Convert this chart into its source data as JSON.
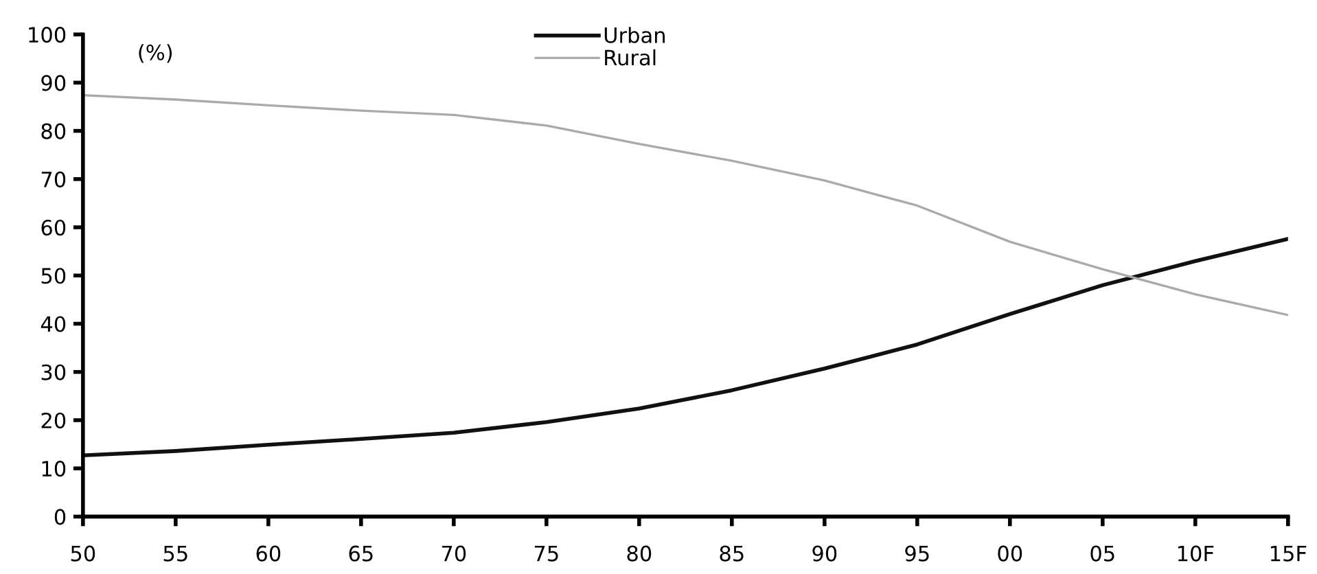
{
  "chart_data": {
    "type": "line",
    "categories": [
      "50",
      "55",
      "60",
      "65",
      "70",
      "75",
      "80",
      "85",
      "90",
      "95",
      "00",
      "05",
      "10F",
      "15F"
    ],
    "series": [
      {
        "name": "Urban",
        "color": "#111111",
        "values": [
          12.7,
          13.6,
          14.9,
          16.1,
          17.4,
          19.6,
          22.4,
          26.2,
          30.7,
          35.7,
          42,
          48,
          53,
          57.6
        ]
      },
      {
        "name": "Rural",
        "color": "#aaaaaa",
        "values": [
          87.4,
          86.5,
          85.3,
          84.2,
          83.3,
          81.1,
          77.3,
          73.8,
          69.7,
          64.5,
          57,
          51.3,
          46.1,
          41.8
        ]
      }
    ],
    "ylim": [
      0,
      100
    ],
    "yticks": [
      0,
      10,
      20,
      30,
      40,
      50,
      60,
      70,
      80,
      90,
      100
    ],
    "annotations": [
      "(%)"
    ],
    "legend": "top",
    "grid": false,
    "marker": "none",
    "line_style": "solid"
  }
}
